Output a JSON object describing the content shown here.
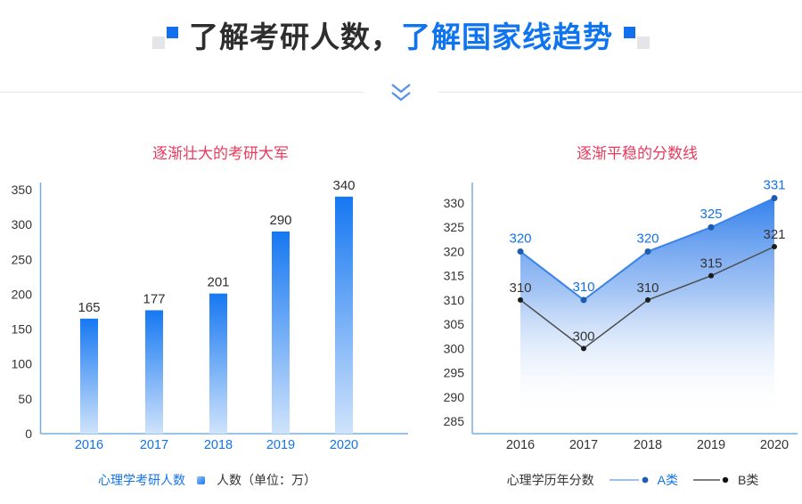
{
  "header": {
    "title_dark": "了解考研人数，",
    "title_blue": "了解国家线趋势"
  },
  "colors": {
    "accent_blue": "#0f74f0",
    "chart_title_red": "#e83a5c",
    "bar_gradient_top": "#1678f2",
    "bar_gradient_bottom": "#cfe3fb",
    "axis_line_blue": "#78aede",
    "label_dark": "#333333",
    "series_a_line": "#3b83e8",
    "series_a_dot": "#1d5cb0",
    "series_a_text": "#1372e8",
    "series_b_line": "#4d4d4d",
    "series_b_dot": "#1c1c1c"
  },
  "chart_data": [
    {
      "type": "bar",
      "title": "逐渐壮大的考研大军",
      "categories": [
        "2016",
        "2017",
        "2018",
        "2019",
        "2020"
      ],
      "values": [
        165,
        177,
        201,
        290,
        340
      ],
      "ylim": [
        0,
        350
      ],
      "ytick_step": 50,
      "grid": false,
      "legend_name": "心理学考研人数",
      "series_label": "人数（单位：万）"
    },
    {
      "type": "line",
      "title": "逐渐平稳的分数线",
      "categories": [
        "2016",
        "2017",
        "2018",
        "2019",
        "2020"
      ],
      "series": [
        {
          "name": "A类",
          "values": [
            320,
            310,
            320,
            325,
            331
          ],
          "style": "area"
        },
        {
          "name": "B类",
          "values": [
            310,
            300,
            310,
            315,
            321
          ],
          "style": "plain"
        }
      ],
      "ylim": [
        285,
        330
      ],
      "ytick_step": 5,
      "grid": false,
      "legend_name": "心理学历年分数",
      "legend_position": "bottom"
    }
  ]
}
